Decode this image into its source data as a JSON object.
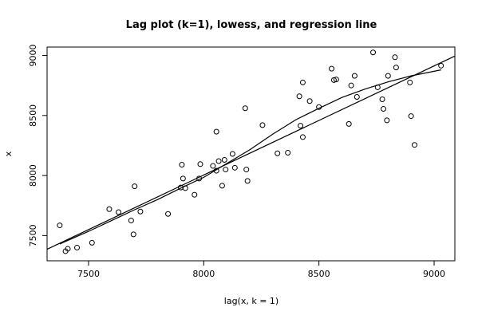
{
  "chart_data": {
    "type": "scatter",
    "title": "Lag plot (k=1), lowess, and regression line",
    "xlabel": "lag(x, k = 1)",
    "ylabel": "x",
    "xlim": [
      7320,
      9090
    ],
    "ylim": [
      7290,
      9070
    ],
    "x_ticks": [
      7500,
      8000,
      8500,
      9000
    ],
    "y_ticks": [
      7500,
      8000,
      8500,
      9000
    ],
    "grid": false,
    "points": [
      {
        "x": 7375,
        "y": 7585
      },
      {
        "x": 7400,
        "y": 7370
      },
      {
        "x": 7410,
        "y": 7390
      },
      {
        "x": 7450,
        "y": 7400
      },
      {
        "x": 7515,
        "y": 7440
      },
      {
        "x": 7590,
        "y": 7720
      },
      {
        "x": 7630,
        "y": 7695
      },
      {
        "x": 7685,
        "y": 7625
      },
      {
        "x": 7695,
        "y": 7510
      },
      {
        "x": 7700,
        "y": 7910
      },
      {
        "x": 7725,
        "y": 7700
      },
      {
        "x": 7845,
        "y": 7680
      },
      {
        "x": 7900,
        "y": 7900
      },
      {
        "x": 7905,
        "y": 8090
      },
      {
        "x": 7910,
        "y": 7975
      },
      {
        "x": 7920,
        "y": 7895
      },
      {
        "x": 7960,
        "y": 7840
      },
      {
        "x": 7980,
        "y": 7975
      },
      {
        "x": 7985,
        "y": 8095
      },
      {
        "x": 8040,
        "y": 8080
      },
      {
        "x": 8055,
        "y": 8040
      },
      {
        "x": 8055,
        "y": 8365
      },
      {
        "x": 8065,
        "y": 8120
      },
      {
        "x": 8080,
        "y": 7915
      },
      {
        "x": 8090,
        "y": 8130
      },
      {
        "x": 8095,
        "y": 8050
      },
      {
        "x": 8125,
        "y": 8180
      },
      {
        "x": 8135,
        "y": 8065
      },
      {
        "x": 8180,
        "y": 8560
      },
      {
        "x": 8185,
        "y": 8050
      },
      {
        "x": 8190,
        "y": 7955
      },
      {
        "x": 8255,
        "y": 8420
      },
      {
        "x": 8320,
        "y": 8185
      },
      {
        "x": 8365,
        "y": 8190
      },
      {
        "x": 8415,
        "y": 8660
      },
      {
        "x": 8420,
        "y": 8415
      },
      {
        "x": 8430,
        "y": 8775
      },
      {
        "x": 8430,
        "y": 8320
      },
      {
        "x": 8460,
        "y": 8620
      },
      {
        "x": 8500,
        "y": 8570
      },
      {
        "x": 8555,
        "y": 8890
      },
      {
        "x": 8565,
        "y": 8795
      },
      {
        "x": 8575,
        "y": 8800
      },
      {
        "x": 8630,
        "y": 8430
      },
      {
        "x": 8640,
        "y": 8750
      },
      {
        "x": 8655,
        "y": 8830
      },
      {
        "x": 8665,
        "y": 8655
      },
      {
        "x": 8735,
        "y": 9025
      },
      {
        "x": 8755,
        "y": 8735
      },
      {
        "x": 8775,
        "y": 8635
      },
      {
        "x": 8780,
        "y": 8555
      },
      {
        "x": 8795,
        "y": 8460
      },
      {
        "x": 8800,
        "y": 8830
      },
      {
        "x": 8830,
        "y": 8985
      },
      {
        "x": 8835,
        "y": 8900
      },
      {
        "x": 8895,
        "y": 8775
      },
      {
        "x": 8900,
        "y": 8495
      },
      {
        "x": 8915,
        "y": 8255
      },
      {
        "x": 9030,
        "y": 8915
      }
    ],
    "regression_line": [
      {
        "x": 7320,
        "y": 7386
      },
      {
        "x": 9090,
        "y": 8995
      }
    ],
    "lowess_line": [
      {
        "x": 7375,
        "y": 7430
      },
      {
        "x": 7500,
        "y": 7535
      },
      {
        "x": 7600,
        "y": 7625
      },
      {
        "x": 7700,
        "y": 7715
      },
      {
        "x": 7800,
        "y": 7800
      },
      {
        "x": 7900,
        "y": 7895
      },
      {
        "x": 8000,
        "y": 7985
      },
      {
        "x": 8100,
        "y": 8100
      },
      {
        "x": 8200,
        "y": 8215
      },
      {
        "x": 8300,
        "y": 8345
      },
      {
        "x": 8400,
        "y": 8465
      },
      {
        "x": 8500,
        "y": 8560
      },
      {
        "x": 8600,
        "y": 8650
      },
      {
        "x": 8700,
        "y": 8720
      },
      {
        "x": 8800,
        "y": 8780
      },
      {
        "x": 8900,
        "y": 8830
      },
      {
        "x": 9030,
        "y": 8880
      }
    ]
  }
}
